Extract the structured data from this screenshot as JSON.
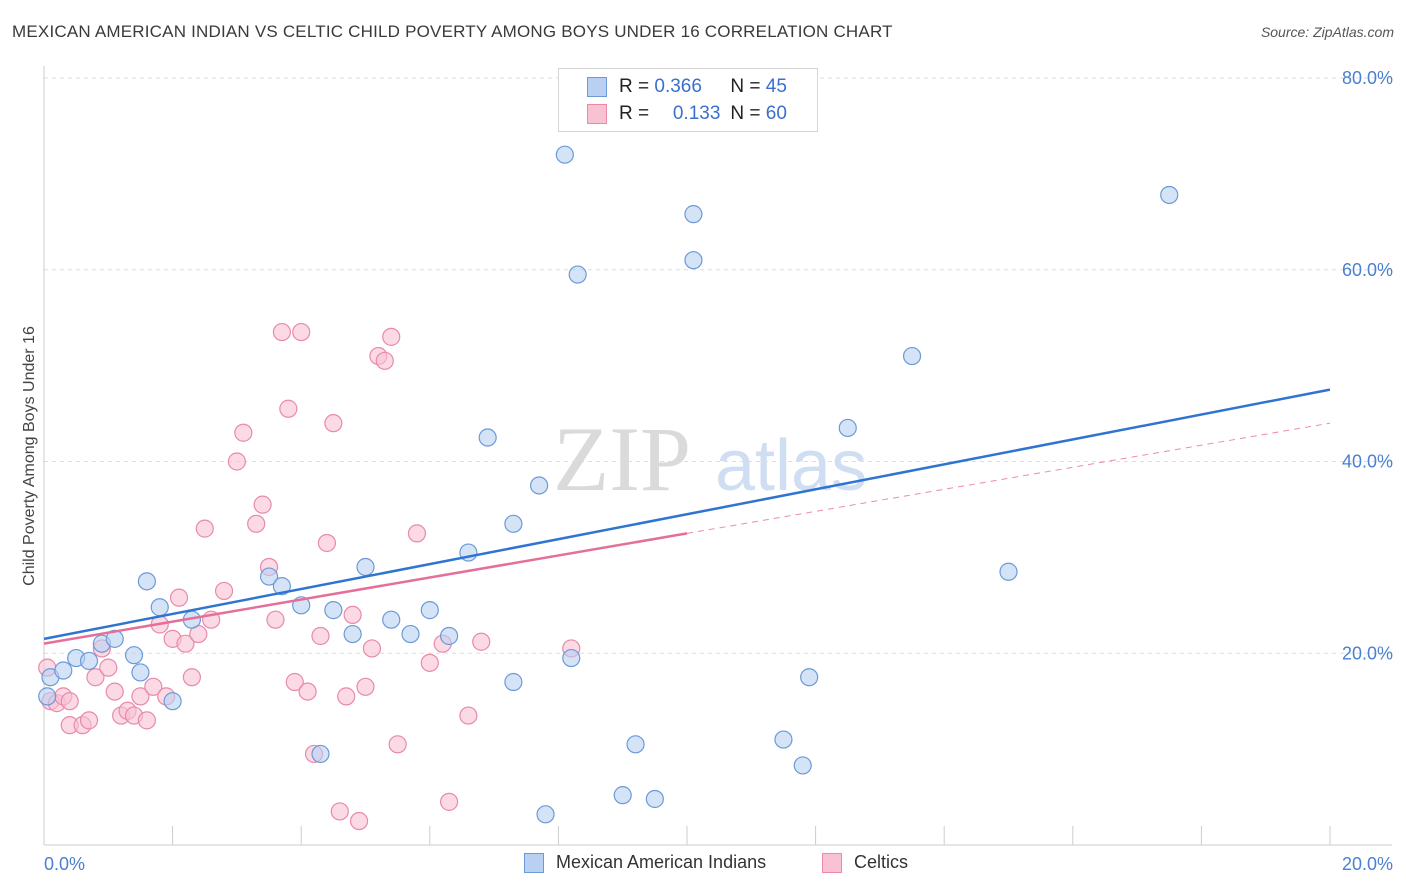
{
  "title": "MEXICAN AMERICAN INDIAN VS CELTIC CHILD POVERTY AMONG BOYS UNDER 16 CORRELATION CHART",
  "source": "Source: ZipAtlas.com",
  "legend": {
    "r_label": "R =",
    "n_label": "N =",
    "series1_r": "0.366",
    "series1_n": "45",
    "series2_r": "0.133",
    "series2_n": "60"
  },
  "watermark": {
    "zip": "ZIP",
    "atlas": "atlas"
  },
  "colors": {
    "blue_fill": "#b9d0f2",
    "blue_stroke": "#6c9ad8",
    "blue_line": "#2f74d0",
    "pink_fill": "#f9c2d3",
    "pink_stroke": "#e88aa8",
    "pink_line": "#e56f9a",
    "tick_text": "#4a7fd1",
    "grid": "#dddddd"
  },
  "chart_data": {
    "type": "scatter",
    "title": "MEXICAN AMERICAN INDIAN VS CELTIC CHILD POVERTY AMONG BOYS UNDER 16 CORRELATION CHART",
    "xlabel": "",
    "ylabel": "Child Poverty Among Boys Under 16",
    "xlim": [
      0,
      20
    ],
    "ylim": [
      0,
      80
    ],
    "x_tick_labels": [
      "0.0%",
      "20.0%"
    ],
    "y_ticks": [
      20,
      40,
      60,
      80
    ],
    "y_tick_labels": [
      "20.0%",
      "40.0%",
      "60.0%",
      "80.0%"
    ],
    "grid": true,
    "legend_position": "top-center",
    "series": [
      {
        "name": "Mexican American Indians",
        "R": 0.366,
        "N": 45,
        "trend": {
          "x": [
            0,
            20
          ],
          "y": [
            21.5,
            47.5
          ],
          "dashed_from": null
        },
        "points": [
          [
            0.1,
            17.5
          ],
          [
            0.3,
            18.2
          ],
          [
            0.5,
            19.5
          ],
          [
            0.7,
            19.2
          ],
          [
            0.9,
            21.0
          ],
          [
            1.1,
            21.5
          ],
          [
            1.4,
            19.8
          ],
          [
            1.5,
            18.0
          ],
          [
            1.6,
            27.5
          ],
          [
            1.8,
            24.8
          ],
          [
            2.0,
            15.0
          ],
          [
            2.3,
            23.5
          ],
          [
            3.5,
            28.0
          ],
          [
            3.7,
            27.0
          ],
          [
            4.0,
            25.0
          ],
          [
            4.3,
            9.5
          ],
          [
            4.5,
            24.5
          ],
          [
            4.8,
            22.0
          ],
          [
            5.0,
            29.0
          ],
          [
            5.4,
            23.5
          ],
          [
            5.7,
            22.0
          ],
          [
            6.0,
            24.5
          ],
          [
            6.3,
            21.8
          ],
          [
            6.6,
            30.5
          ],
          [
            6.9,
            42.5
          ],
          [
            7.3,
            33.5
          ],
          [
            7.3,
            17.0
          ],
          [
            7.7,
            37.5
          ],
          [
            7.8,
            3.2
          ],
          [
            8.1,
            72.0
          ],
          [
            8.2,
            19.5
          ],
          [
            8.3,
            59.5
          ],
          [
            9.0,
            5.2
          ],
          [
            9.2,
            10.5
          ],
          [
            9.5,
            4.8
          ],
          [
            10.1,
            61.0
          ],
          [
            10.1,
            65.8
          ],
          [
            11.5,
            11.0
          ],
          [
            11.8,
            8.3
          ],
          [
            11.9,
            17.5
          ],
          [
            12.5,
            43.5
          ],
          [
            13.5,
            51.0
          ],
          [
            15.0,
            28.5
          ],
          [
            17.5,
            67.8
          ],
          [
            0.05,
            15.5
          ]
        ]
      },
      {
        "name": "Celtics",
        "R": 0.133,
        "N": 60,
        "trend": {
          "x": [
            0,
            20
          ],
          "y": [
            21.0,
            44.0
          ],
          "solid_until_x": 10.0
        },
        "points": [
          [
            0.05,
            18.5
          ],
          [
            0.1,
            15.0
          ],
          [
            0.2,
            14.8
          ],
          [
            0.3,
            15.5
          ],
          [
            0.4,
            15.0
          ],
          [
            0.4,
            12.5
          ],
          [
            0.6,
            12.5
          ],
          [
            0.7,
            13.0
          ],
          [
            0.8,
            17.5
          ],
          [
            0.9,
            20.5
          ],
          [
            1.0,
            18.5
          ],
          [
            1.1,
            16.0
          ],
          [
            1.2,
            13.5
          ],
          [
            1.3,
            14.0
          ],
          [
            1.4,
            13.5
          ],
          [
            1.5,
            15.5
          ],
          [
            1.6,
            13.0
          ],
          [
            1.7,
            16.5
          ],
          [
            1.8,
            23.0
          ],
          [
            1.9,
            15.5
          ],
          [
            2.0,
            21.5
          ],
          [
            2.1,
            25.8
          ],
          [
            2.2,
            21.0
          ],
          [
            2.3,
            17.5
          ],
          [
            2.4,
            22.0
          ],
          [
            2.5,
            33.0
          ],
          [
            2.6,
            23.5
          ],
          [
            2.8,
            26.5
          ],
          [
            3.0,
            40.0
          ],
          [
            3.1,
            43.0
          ],
          [
            3.3,
            33.5
          ],
          [
            3.4,
            35.5
          ],
          [
            3.5,
            29.0
          ],
          [
            3.6,
            23.5
          ],
          [
            3.7,
            53.5
          ],
          [
            3.8,
            45.5
          ],
          [
            3.9,
            17.0
          ],
          [
            4.0,
            53.5
          ],
          [
            4.1,
            16.0
          ],
          [
            4.2,
            9.5
          ],
          [
            4.3,
            21.8
          ],
          [
            4.4,
            31.5
          ],
          [
            4.5,
            44.0
          ],
          [
            4.6,
            3.5
          ],
          [
            4.7,
            15.5
          ],
          [
            4.8,
            24.0
          ],
          [
            4.9,
            2.5
          ],
          [
            5.0,
            16.5
          ],
          [
            5.1,
            20.5
          ],
          [
            5.2,
            51.0
          ],
          [
            5.3,
            50.5
          ],
          [
            5.4,
            53.0
          ],
          [
            5.5,
            10.5
          ],
          [
            5.8,
            32.5
          ],
          [
            6.0,
            19.0
          ],
          [
            6.2,
            21.0
          ],
          [
            6.3,
            4.5
          ],
          [
            6.6,
            13.5
          ],
          [
            6.8,
            21.2
          ],
          [
            8.2,
            20.5
          ]
        ]
      }
    ]
  },
  "bottom_legend": {
    "item1": "Mexican American Indians",
    "item2": "Celtics"
  }
}
